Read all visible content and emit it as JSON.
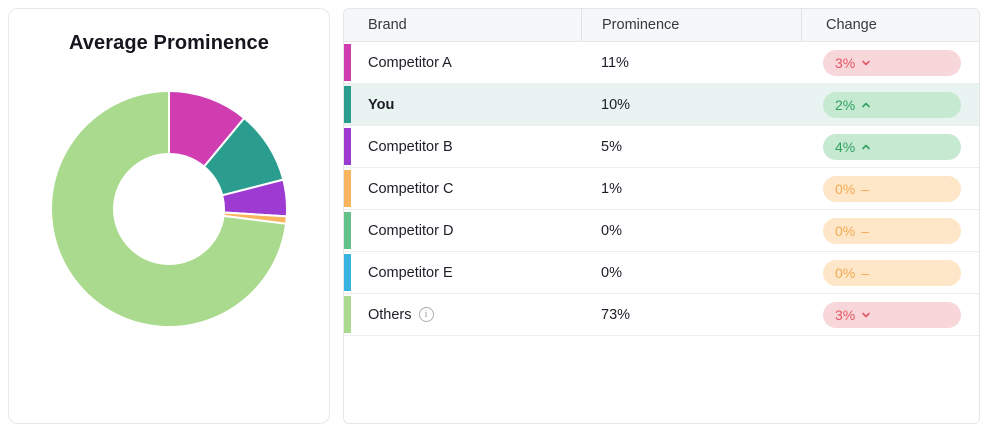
{
  "card": {
    "title": "Average Prominence"
  },
  "chart_data": {
    "type": "pie",
    "title": "Average Prominence",
    "labels": [
      "Competitor A",
      "You",
      "Competitor B",
      "Competitor C",
      "Competitor D",
      "Competitor E",
      "Others"
    ],
    "values": [
      11,
      10,
      5,
      1,
      0,
      0,
      73
    ],
    "colors": [
      "#cf3db1",
      "#2a9d8f",
      "#9c3ad2",
      "#f9b45f",
      "#63c289",
      "#38b3e0",
      "#a9da8d"
    ],
    "donut": true,
    "inner_radius_ratio": 0.47,
    "start_angle": "top",
    "direction": "clockwise",
    "legend": "none"
  },
  "table": {
    "columns": [
      "Brand",
      "Prominence",
      "Change"
    ],
    "rows": [
      {
        "brand": "Competitor A",
        "color": "#cf3db1",
        "prominence": "11%",
        "change": "3%",
        "direction": "down",
        "sentiment": "negative",
        "highlight": false,
        "info": false
      },
      {
        "brand": "You",
        "color": "#2a9d8f",
        "prominence": "10%",
        "change": "2%",
        "direction": "up",
        "sentiment": "positive",
        "highlight": true,
        "info": false
      },
      {
        "brand": "Competitor B",
        "color": "#9c3ad2",
        "prominence": "5%",
        "change": "4%",
        "direction": "up",
        "sentiment": "positive",
        "highlight": false,
        "info": false
      },
      {
        "brand": "Competitor C",
        "color": "#f9b45f",
        "prominence": "1%",
        "change": "0%",
        "direction": "flat",
        "sentiment": "neutral",
        "highlight": false,
        "info": false
      },
      {
        "brand": "Competitor D",
        "color": "#63c289",
        "prominence": "0%",
        "change": "0%",
        "direction": "flat",
        "sentiment": "neutral",
        "highlight": false,
        "info": false
      },
      {
        "brand": "Competitor E",
        "color": "#38b3e0",
        "prominence": "0%",
        "change": "0%",
        "direction": "flat",
        "sentiment": "neutral",
        "highlight": false,
        "info": false
      },
      {
        "brand": "Others",
        "color": "#a9da8d",
        "prominence": "73%",
        "change": "3%",
        "direction": "down",
        "sentiment": "negative",
        "highlight": false,
        "info": true
      }
    ]
  },
  "icons": {
    "info_glyph": "i",
    "dash_glyph": "–"
  },
  "colors": {
    "pill_negative_bg": "#f8d7da",
    "pill_negative_text": "#e15764",
    "pill_positive_bg": "#c6e9d2",
    "pill_positive_text": "#2fa25f",
    "pill_neutral_bg": "#fde7c8",
    "pill_neutral_text": "#f3a94e",
    "highlight_row_bg": "#e9f3f1",
    "header_bg": "#f6f7f8"
  }
}
